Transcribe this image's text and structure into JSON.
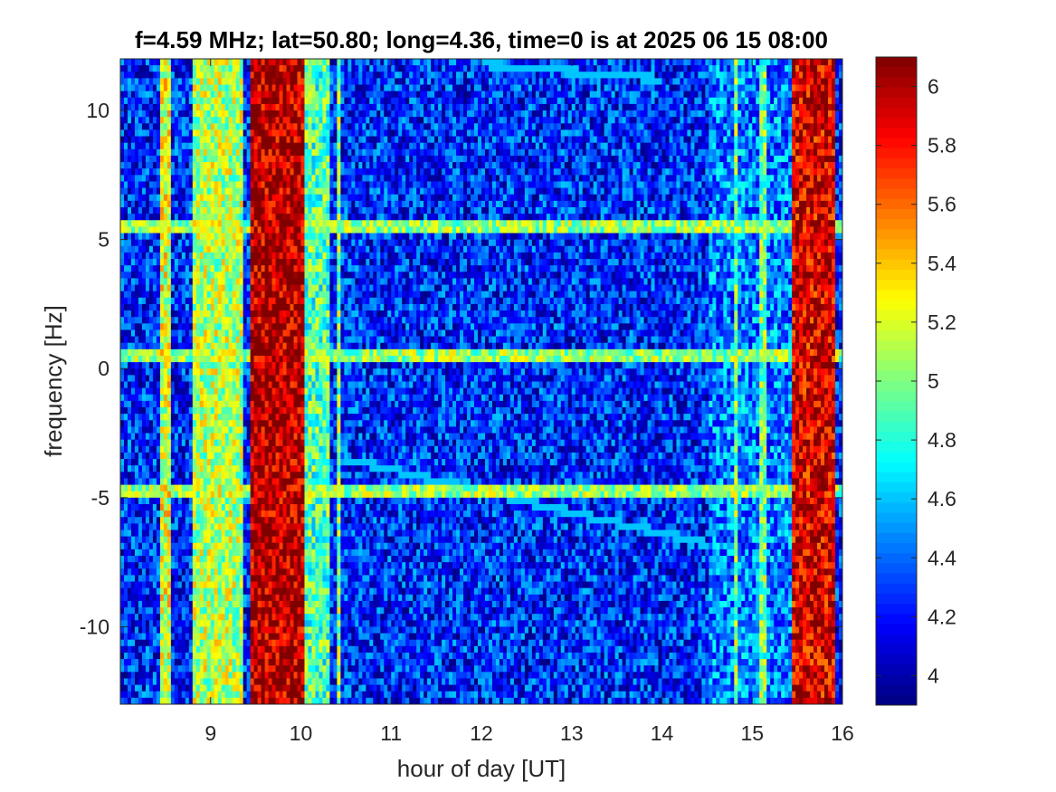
{
  "chart_data": {
    "type": "heatmap",
    "title": "f=4.59 MHz;  lat=50.80; long=4.36, time=0 is at 2025 06 15 08:00",
    "xlabel": "hour of day [UT]",
    "ylabel": "frequency [Hz]",
    "xlim": [
      8.0,
      16.0
    ],
    "ylim": [
      -13.0,
      12.0
    ],
    "xticks": [
      9,
      10,
      11,
      12,
      13,
      14,
      15,
      16
    ],
    "yticks": [
      10,
      5,
      0,
      -5,
      -10
    ],
    "colormap": "jet",
    "color_range": [
      3.9,
      6.1
    ],
    "colorbar_ticks": [
      6,
      5.8,
      5.6,
      5.4,
      5.2,
      5,
      4.8,
      4.6,
      4.4,
      4.2,
      4
    ],
    "background_level": 4.25,
    "high_intensity_bands": [
      {
        "x": [
          8.45,
          8.55
        ],
        "level": 5.2
      },
      {
        "x": [
          8.8,
          9.35
        ],
        "level": 5.1
      },
      {
        "x": [
          9.45,
          10.05
        ],
        "level": 6.0
      },
      {
        "x": [
          10.05,
          10.3
        ],
        "level": 4.9
      },
      {
        "x": [
          10.4,
          10.45
        ],
        "level": 5.0
      },
      {
        "x": [
          14.8,
          14.85
        ],
        "level": 5.0
      },
      {
        "x": [
          15.1,
          15.15
        ],
        "level": 5.0
      },
      {
        "x": [
          15.45,
          15.9
        ],
        "level": 5.9
      }
    ],
    "horizontal_traces": [
      {
        "y": 5.4,
        "x": [
          8.0,
          16.0
        ]
      },
      {
        "y": 0.6,
        "x": [
          8.0,
          16.0
        ]
      },
      {
        "y": -4.8,
        "x": [
          8.0,
          16.0
        ]
      }
    ],
    "faint_arcs": [
      {
        "x": [
          12.0,
          14.0
        ],
        "y": [
          11.8,
          11.2
        ]
      },
      {
        "x": [
          10.5,
          14.5
        ],
        "y": [
          -3.5,
          -6.8
        ]
      }
    ]
  },
  "colors": {
    "jet_low": "#00008f",
    "jet_high": "#800000",
    "axes": "#262626"
  }
}
